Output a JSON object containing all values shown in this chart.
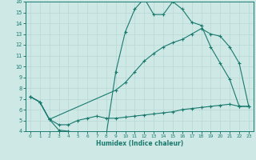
{
  "xlabel": "Humidex (Indice chaleur)",
  "xlim": [
    -0.5,
    23.5
  ],
  "ylim": [
    4,
    16
  ],
  "yticks": [
    4,
    5,
    6,
    7,
    8,
    9,
    10,
    11,
    12,
    13,
    14,
    15,
    16
  ],
  "xticks": [
    0,
    1,
    2,
    3,
    4,
    5,
    6,
    7,
    8,
    9,
    10,
    11,
    12,
    13,
    14,
    15,
    16,
    17,
    18,
    19,
    20,
    21,
    22,
    23
  ],
  "line_color": "#1a7a6e",
  "bg_color": "#cde8e5",
  "grid_color": "#b8d8d4",
  "line1_x": [
    0,
    1,
    2,
    3,
    4,
    5,
    6,
    7,
    8,
    9,
    10,
    11,
    12,
    13,
    14,
    15,
    16,
    17,
    18,
    19,
    20,
    21,
    22,
    23
  ],
  "line1_y": [
    7.2,
    6.7,
    5.1,
    4.1,
    4.0,
    3.8,
    3.7,
    3.7,
    3.7,
    9.5,
    13.2,
    15.3,
    16.3,
    14.8,
    14.8,
    16.0,
    15.3,
    14.1,
    13.8,
    11.8,
    10.3,
    8.8,
    6.3,
    6.3
  ],
  "line2_x": [
    0,
    1,
    2,
    3,
    4,
    5,
    6,
    7,
    8,
    9,
    10,
    11,
    12,
    13,
    14,
    15,
    16,
    17,
    18,
    19,
    20,
    21,
    22,
    23
  ],
  "line2_y": [
    7.2,
    6.7,
    5.1,
    4.6,
    4.6,
    5.0,
    5.2,
    5.4,
    5.2,
    5.2,
    5.3,
    5.4,
    5.5,
    5.6,
    5.7,
    5.8,
    6.0,
    6.1,
    6.2,
    6.3,
    6.4,
    6.5,
    6.3,
    6.3
  ],
  "line3_x": [
    0,
    1,
    2,
    9,
    10,
    11,
    12,
    13,
    14,
    15,
    16,
    17,
    18,
    19,
    20,
    21,
    22,
    23
  ],
  "line3_y": [
    7.2,
    6.7,
    5.1,
    7.8,
    8.5,
    9.5,
    10.5,
    11.2,
    11.8,
    12.2,
    12.5,
    13.0,
    13.5,
    13.0,
    12.8,
    11.8,
    10.3,
    6.3
  ]
}
